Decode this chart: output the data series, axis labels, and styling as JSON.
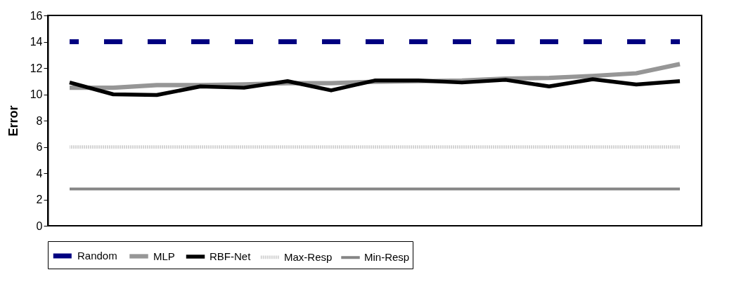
{
  "chart_data": {
    "type": "line",
    "ylabel": "Error",
    "categories": [
      null,
      null,
      null,
      null,
      null,
      null,
      null,
      null,
      null,
      null,
      null,
      null,
      null,
      null,
      null
    ],
    "ylim": [
      0,
      16
    ],
    "yticks": [
      0,
      2,
      4,
      6,
      8,
      10,
      12,
      14,
      16
    ],
    "grid": false,
    "legend": "bottom",
    "tick_labels": "y",
    "marker": "none",
    "series": [
      {
        "name": "Random",
        "color": "#000080",
        "line_style": "dashed",
        "values": [
          14,
          14,
          14,
          14,
          14,
          14,
          14,
          14,
          14,
          14,
          14,
          14,
          14,
          14,
          14
        ]
      },
      {
        "name": "MLP",
        "color": "#969696",
        "line_style": "solid",
        "values": [
          10.5,
          10.5,
          10.7,
          10.7,
          10.75,
          10.85,
          10.85,
          10.95,
          11.0,
          11.05,
          11.2,
          11.25,
          11.4,
          11.6,
          12.3
        ]
      },
      {
        "name": "RBF-Net",
        "color": "#000000",
        "line_style": "solid",
        "values": [
          10.9,
          10.0,
          9.95,
          10.6,
          10.5,
          11.0,
          10.3,
          11.05,
          11.05,
          10.9,
          11.1,
          10.6,
          11.15,
          10.75,
          11.0
        ]
      },
      {
        "name": "Max-Resp",
        "color": "#d4d4d4",
        "line_style": "dotted",
        "values": [
          6,
          6,
          6,
          6,
          6,
          6,
          6,
          6,
          6,
          6,
          6,
          6,
          6,
          6,
          6
        ]
      },
      {
        "name": "Min-Resp",
        "color": "#858585",
        "line_style": "solid",
        "values": [
          2.8,
          2.8,
          2.8,
          2.8,
          2.8,
          2.8,
          2.8,
          2.8,
          2.8,
          2.8,
          2.8,
          2.8,
          2.8,
          2.8,
          2.8
        ]
      }
    ]
  }
}
